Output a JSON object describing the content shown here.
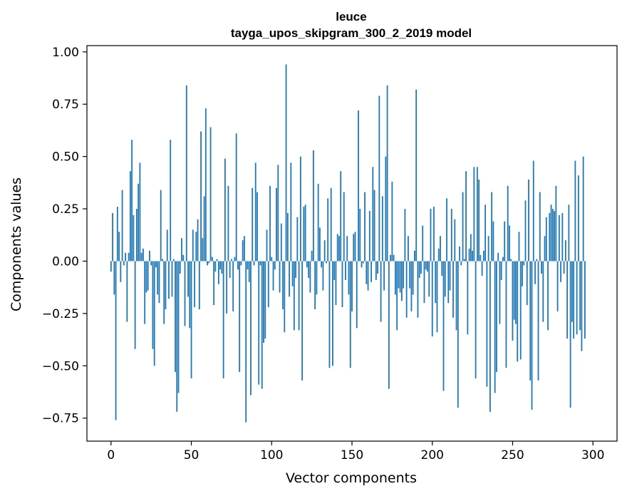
{
  "chart_data": {
    "type": "bar",
    "title": "leuce",
    "subtitle": "tayga_upos_skipgram_300_2_2019 model",
    "xlabel": "Vector components",
    "ylabel": "Components values",
    "xlim": [
      -15,
      315
    ],
    "ylim": [
      -0.86,
      1.03
    ],
    "xticks": [
      0,
      50,
      100,
      150,
      200,
      250,
      300
    ],
    "xtick_labels": [
      "0",
      "50",
      "100",
      "150",
      "200",
      "250",
      "300"
    ],
    "yticks": [
      -0.75,
      -0.5,
      -0.25,
      0.0,
      0.25,
      0.5,
      0.75,
      1.0
    ],
    "ytick_labels": [
      "−0.75",
      "−0.50",
      "−0.25",
      "0.00",
      "0.25",
      "0.50",
      "0.75",
      "1.00"
    ],
    "bar_color": "#1f77b4",
    "grid": false,
    "values": [
      -0.05,
      0.23,
      -0.16,
      -0.76,
      0.26,
      0.14,
      -0.1,
      0.34,
      -0.02,
      0.04,
      -0.29,
      0.04,
      0.43,
      0.58,
      0.22,
      -0.42,
      0.25,
      0.37,
      0.47,
      0.04,
      0.06,
      -0.3,
      -0.15,
      -0.14,
      0.05,
      -0.02,
      -0.42,
      -0.5,
      -0.03,
      -0.16,
      -0.2,
      0.34,
      0.01,
      -0.3,
      -0.23,
      0.15,
      -0.18,
      0.58,
      -0.17,
      0.01,
      -0.53,
      -0.72,
      -0.63,
      -0.06,
      0.11,
      0.03,
      -0.31,
      0.84,
      -0.17,
      -0.32,
      -0.56,
      0.15,
      -0.22,
      0.14,
      0.2,
      -0.23,
      0.62,
      0.11,
      0.31,
      0.73,
      -0.02,
      -0.01,
      0.64,
      0.02,
      -0.21,
      -0.05,
      0.01,
      -0.11,
      -0.04,
      -0.06,
      -0.56,
      0.49,
      -0.25,
      0.36,
      -0.08,
      0.01,
      -0.24,
      0.02,
      0.61,
      -0.04,
      -0.53,
      -0.02,
      0.1,
      0.12,
      -0.77,
      -0.04,
      -0.1,
      -0.64,
      0.35,
      -0.02,
      0.47,
      0.33,
      -0.59,
      -0.02,
      -0.61,
      -0.39,
      -0.37,
      0.15,
      -0.22,
      0.36,
      0.02,
      -0.14,
      -0.04,
      0.35,
      0.46,
      -0.15,
      0.18,
      -0.23,
      -0.34,
      0.94,
      0.23,
      -0.17,
      0.47,
      -0.12,
      -0.33,
      -0.08,
      0.21,
      -0.33,
      0.5,
      -0.57,
      0.26,
      0.27,
      -0.03,
      -0.08,
      -0.15,
      0.05,
      0.53,
      -0.23,
      -0.16,
      0.37,
      0.16,
      -0.03,
      -0.14,
      0.1,
      -0.01,
      0.3,
      -0.51,
      0.35,
      -0.5,
      -0.09,
      -0.21,
      0.13,
      0.12,
      0.43,
      -0.22,
      0.33,
      -0.09,
      0.12,
      -0.16,
      -0.51,
      -0.24,
      0.13,
      0.14,
      -0.32,
      0.72,
      0.25,
      -0.03,
      -0.01,
      0.33,
      -0.11,
      -0.14,
      0.24,
      -0.1,
      0.45,
      0.34,
      -0.09,
      -0.06,
      0.79,
      -0.29,
      0.31,
      -0.14,
      0.5,
      0.84,
      -0.61,
      0.03,
      0.38,
      0.03,
      -0.16,
      -0.33,
      -0.13,
      -0.15,
      -0.19,
      -0.13,
      0.25,
      -0.27,
      0.12,
      -0.13,
      -0.24,
      -0.16,
      0.05,
      0.82,
      -0.27,
      -0.08,
      -0.06,
      0.17,
      -0.2,
      -0.04,
      -0.05,
      -0.17,
      0.25,
      -0.36,
      0.26,
      -0.2,
      -0.34,
      0.06,
      0.12,
      -0.07,
      -0.62,
      -0.17,
      0.3,
      -0.2,
      -0.14,
      0.25,
      -0.27,
      0.2,
      -0.33,
      -0.7,
      0.07,
      -0.02,
      0.33,
      0.01,
      0.43,
      -0.35,
      0.06,
      0.13,
      0.05,
      0.45,
      -0.56,
      0.45,
      0.39,
      0.03,
      -0.07,
      0.05,
      0.27,
      -0.6,
      0.12,
      -0.72,
      0.33,
      0.19,
      -0.63,
      -0.53,
      0.04,
      -0.3,
      -0.09,
      0.02,
      0.19,
      -0.51,
      0.36,
      0.17,
      0.01,
      -0.38,
      -0.28,
      -0.3,
      -0.48,
      0.14,
      -0.47,
      -0.12,
      -0.02,
      0.29,
      -0.21,
      0.39,
      -0.57,
      -0.71,
      0.48,
      -0.11,
      0.01,
      -0.57,
      0.33,
      -0.06,
      -0.29,
      0.12,
      0.21,
      -0.33,
      0.23,
      0.27,
      0.25,
      0.24,
      0.36,
      -0.24,
      0.22,
      -0.1,
      0.23,
      -0.06,
      0.1,
      -0.37,
      0.27,
      -0.7,
      -0.29,
      -0.37,
      0.48,
      -0.35,
      0.41,
      -0.33,
      -0.43,
      0.5,
      -0.37
    ]
  }
}
